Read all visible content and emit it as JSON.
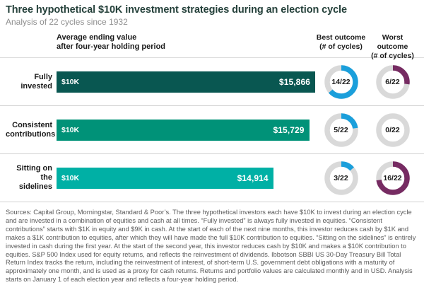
{
  "header": {
    "title": "Three hypothetical $10K investment strategies during an election cycle",
    "subtitle": "Analysis of 22 cycles since 1932"
  },
  "columns": {
    "avg_label_line1": "Average ending value",
    "avg_label_line2": "after four-year holding period",
    "best_line1": "Best outcome",
    "best_line2": "(# of cycles)",
    "worst_line1": "Worst outcome",
    "worst_line2": "(# of cycles)"
  },
  "category_lines": [
    [
      "Fully",
      "invested"
    ],
    [
      "Consistent",
      "contributions"
    ],
    [
      "Sitting on",
      "the sidelines"
    ]
  ],
  "chart_data": {
    "type": "bar",
    "title": "Three hypothetical $10K investment strategies during an election cycle",
    "subtitle": "Analysis of 22 cycles since 1932",
    "categories": [
      "Fully invested",
      "Consistent contributions",
      "Sitting on the sidelines"
    ],
    "series": [
      {
        "name": "Average ending value after four-year holding period",
        "type": "bar",
        "baseline": 10000,
        "start_label": "$10K",
        "values": [
          15866,
          15729,
          14914
        ],
        "labels": [
          "$15,866",
          "$15,729",
          "$14,914"
        ],
        "colors": [
          "#095751",
          "#009278",
          "#00b0a5"
        ]
      },
      {
        "name": "Best outcome (# of cycles)",
        "type": "donut",
        "total": 22,
        "values": [
          14,
          5,
          3
        ],
        "labels": [
          "14/22",
          "5/22",
          "3/22"
        ],
        "color": "#1b9fdb"
      },
      {
        "name": "Worst outcome (# of cycles)",
        "type": "donut",
        "total": 22,
        "values": [
          6,
          0,
          16
        ],
        "labels": [
          "6/22",
          "0/22",
          "16/22"
        ],
        "color": "#762b62"
      }
    ],
    "donut_track_color": "#d9d9d9",
    "legend_position": "none",
    "grid": false
  },
  "footnote": "Sources: Capital Group, Morningstar, Standard & Poor’s. The three hypothetical investors each have $10K to invest during an election cycle and are invested in a combination of equities and cash at all times. “Fully invested” is always fully invested in equities. “Consistent contributions” starts with $1K in equity and $9K in cash. At the start of each of the next nine months, this investor reduces cash by $1K and makes a $1K contribution to equities, after which they will have made the full $10K contribution to equities. “Sitting on the sidelines” is entirely invested in cash during the first year. At the start of the second year, this investor reduces cash by $10K and makes a $10K contribution to equities. S&P 500 Index used for equity returns, and reflects the reinvestment of dividends. Ibbotson SBBI US 30-Day Treasury Bill Total Return Index tracks the return, including the reinvestment of interest, of short-term U.S. government debt obligations with a maturity of approximately one month, and is used as a proxy for cash returns. Returns and portfolio values are calculated monthly and in USD. Analysis starts on January 1 of each election year and reflects a four-year holding period."
}
